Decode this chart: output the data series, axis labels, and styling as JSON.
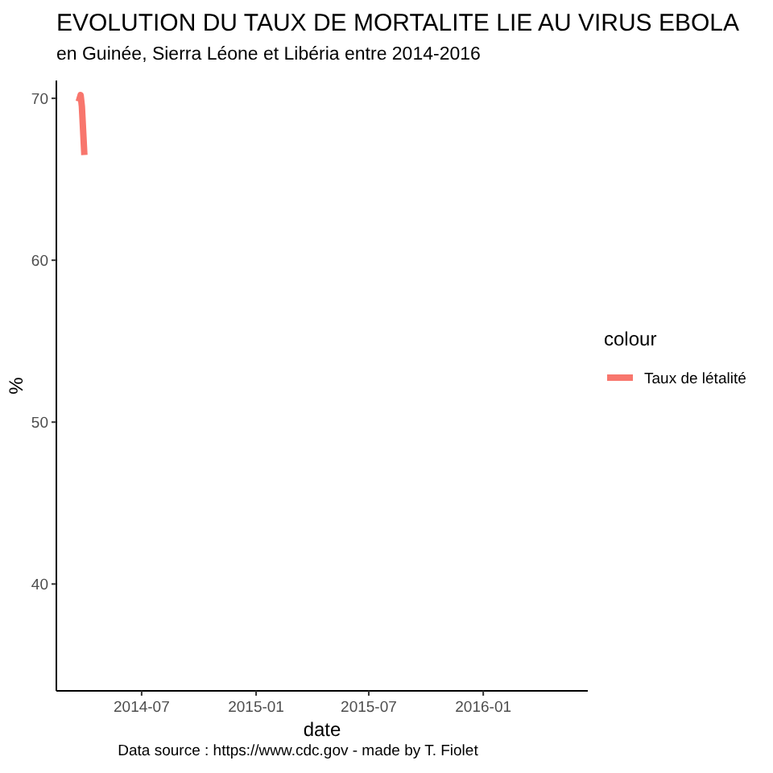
{
  "chart_data": {
    "type": "line",
    "title": "EVOLUTION DU TAUX DE MORTALITE LIE AU VIRUS EBOLA",
    "subtitle": "en Guinée, Sierra Léone et Libéria entre 2014-2016",
    "xlabel": "date",
    "ylabel": "%",
    "legend_title": "colour",
    "legend": "right",
    "grid": false,
    "annotations": [
      "Data source : https://www.cdc.gov - made by T. Fiolet"
    ],
    "xlim": [
      "2014-02-14",
      "2016-06-17"
    ],
    "xticks": [
      "2014-07",
      "2015-01",
      "2015-07",
      "2016-01"
    ],
    "ylim": [
      33.4,
      71.1
    ],
    "yticks": [
      40,
      50,
      60,
      70
    ],
    "series": [
      {
        "name": "Taux de létalité",
        "color": "#f8766d",
        "x": [
          "2014-03-22",
          "2014-03-25",
          "2014-03-27",
          "2014-03-29",
          "2014-03-31"
        ],
        "values": [
          69.8,
          70.2,
          69.5,
          68,
          66.5
        ]
      }
    ]
  }
}
